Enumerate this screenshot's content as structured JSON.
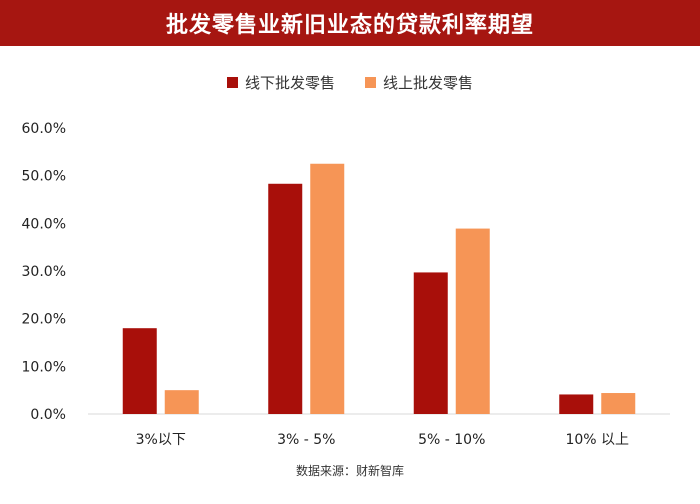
{
  "title": "批发零售业新旧业态的贷款利率期望",
  "source": "数据来源：财新智库",
  "colors": {
    "title_bar": "#a61611",
    "offline": "#a80f0a",
    "online": "#f69556"
  },
  "chart_data": {
    "type": "bar",
    "title": "批发零售业新旧业态的贷款利率期望",
    "xlabel": "",
    "ylabel": "",
    "categories": [
      "3%以下",
      "3% - 5%",
      "5% - 10%",
      "10%  以上"
    ],
    "series": [
      {
        "name": "线下批发零售",
        "values": [
          18.0,
          48.3,
          29.7,
          4.1
        ]
      },
      {
        "name": "线上批发零售",
        "values": [
          5.0,
          52.5,
          38.9,
          4.4
        ]
      }
    ],
    "ylim": [
      0,
      60
    ],
    "yticks": [
      "0.0%",
      "10.0%",
      "20.0%",
      "30.0%",
      "40.0%",
      "50.0%",
      "60.0%"
    ],
    "legend": "top-center",
    "grid": false
  }
}
